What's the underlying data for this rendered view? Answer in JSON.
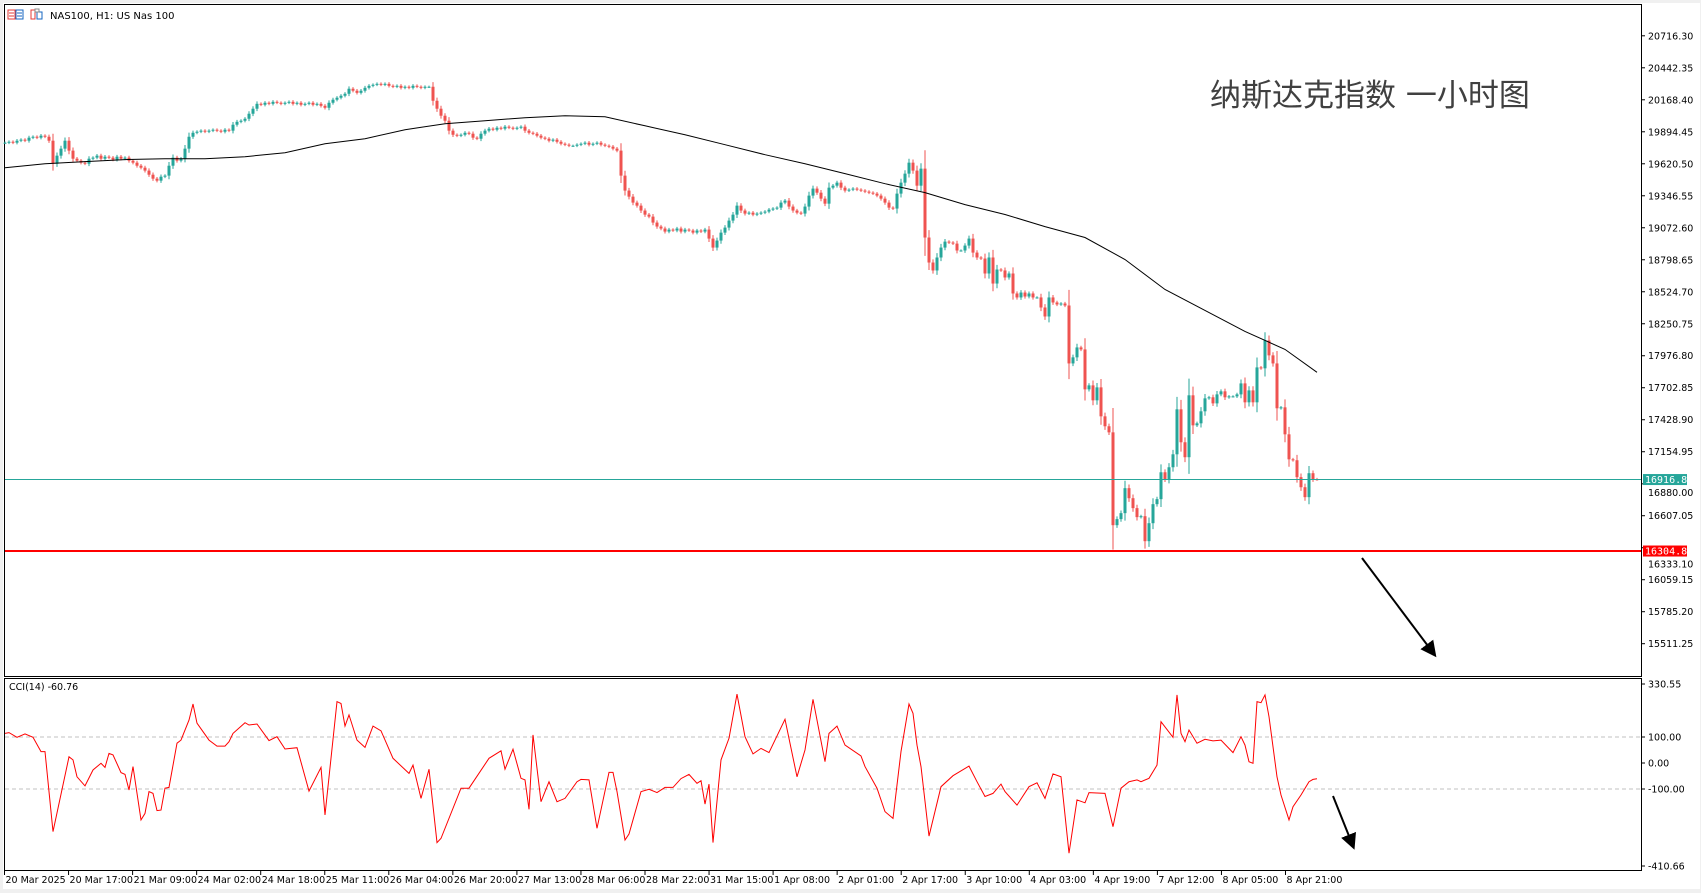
{
  "window": {
    "symbol_title": "NAS100, H1:  US Nas 100",
    "annotation": "纳斯达克指数 一小时图"
  },
  "colors": {
    "bull": "#26a69a",
    "bear": "#ef5350",
    "ma": "#000000",
    "cci": "#ff0000",
    "current_price": "#26a69a",
    "support": "#ff0000",
    "arrow": "#000000"
  },
  "icons": [
    "chart-list-icon",
    "symbol-window-icon"
  ],
  "chart_data": [
    {
      "type": "candlestick",
      "symbol": "NAS100",
      "timeframe": "H1",
      "price_ticks": [
        "20716.30",
        "20442.35",
        "20168.40",
        "19894.45",
        "19620.50",
        "19346.55",
        "19072.60",
        "18798.65",
        "18524.70",
        "18250.75",
        "17976.80",
        "17702.85",
        "17428.90",
        "17154.95",
        "16880.00",
        "16607.05",
        "16333.10",
        "16059.15",
        "15785.20",
        "15511.25"
      ],
      "ylim": [
        15420,
        20810
      ],
      "time_labels": [
        "20 Mar 2025",
        "20 Mar 17:00",
        "21 Mar 09:00",
        "24 Mar 02:00",
        "24 Mar 18:00",
        "25 Mar 11:00",
        "26 Mar 04:00",
        "26 Mar 20:00",
        "27 Mar 13:00",
        "28 Mar 06:00",
        "28 Mar 22:00",
        "31 Mar 15:00",
        "1 Apr 08:00",
        "2 Apr 01:00",
        "2 Apr 17:00",
        "3 Apr 10:00",
        "4 Apr 03:00",
        "4 Apr 19:00",
        "7 Apr 12:00",
        "8 Apr 05:00",
        "8 Apr 21:00"
      ],
      "closes": [
        19801,
        19809,
        19801,
        19818,
        19827,
        19818,
        19844,
        19852,
        19844,
        19861,
        19852,
        19818,
        19621,
        19690,
        19750,
        19818,
        19733,
        19664,
        19647,
        19630,
        19621,
        19664,
        19673,
        19690,
        19664,
        19681,
        19673,
        19656,
        19681,
        19664,
        19673,
        19647,
        19630,
        19604,
        19587,
        19562,
        19527,
        19493,
        19476,
        19510,
        19519,
        19604,
        19673,
        19647,
        19664,
        19750,
        19852,
        19886,
        19895,
        19904,
        19895,
        19904,
        19912,
        19904,
        19895,
        19912,
        19904,
        19955,
        19980,
        19989,
        20006,
        20049,
        20092,
        20134,
        20126,
        20143,
        20134,
        20151,
        20143,
        20134,
        20143,
        20151,
        20134,
        20143,
        20126,
        20134,
        20143,
        20126,
        20134,
        20117,
        20100,
        20143,
        20169,
        20186,
        20203,
        20220,
        20263,
        20246,
        20228,
        20246,
        20271,
        20288,
        20297,
        20305,
        20297,
        20305,
        20288,
        20280,
        20288,
        20271,
        20280,
        20271,
        20288,
        20280,
        20271,
        20280,
        20280,
        20160,
        20092,
        20032,
        19989,
        19904,
        19869,
        19861,
        19869,
        19886,
        19878,
        19844,
        19835,
        19878,
        19904,
        19921,
        19912,
        19929,
        19921,
        19938,
        19929,
        19921,
        19929,
        19938,
        19904,
        19886,
        19878,
        19861,
        19844,
        19835,
        19818,
        19827,
        19809,
        19792,
        19784,
        19775,
        19775,
        19784,
        19792,
        19801,
        19784,
        19792,
        19801,
        19784,
        19775,
        19767,
        19750,
        19733,
        19519,
        19391,
        19339,
        19288,
        19262,
        19220,
        19185,
        19168,
        19117,
        19083,
        19066,
        19040,
        19057,
        19049,
        19066,
        19040,
        19057,
        19049,
        19031,
        19049,
        19040,
        19057,
        18980,
        18903,
        18963,
        19031,
        19074,
        19134,
        19185,
        19262,
        19220,
        19194,
        19202,
        19185,
        19194,
        19202,
        19211,
        19228,
        19237,
        19245,
        19288,
        19305,
        19254,
        19220,
        19202,
        19194,
        19254,
        19348,
        19408,
        19373,
        19322,
        19279,
        19416,
        19433,
        19459,
        19416,
        19391,
        19399,
        19408,
        19399,
        19391,
        19382,
        19373,
        19365,
        19348,
        19322,
        19288,
        19245,
        19237,
        19365,
        19459,
        19536,
        19630,
        19562,
        19433,
        19579,
        18989,
        18775,
        18707,
        18818,
        18903,
        18954,
        18946,
        18937,
        18878,
        18878,
        18920,
        18980,
        18860,
        18818,
        18809,
        18681,
        18818,
        18595,
        18715,
        18707,
        18647,
        18681,
        18510,
        18476,
        18518,
        18484,
        18510,
        18476,
        18476,
        18390,
        18313,
        18476,
        18433,
        18416,
        18424,
        18407,
        17911,
        17963,
        18048,
        18031,
        17689,
        17723,
        17595,
        17706,
        17458,
        17373,
        17321,
        16526,
        16578,
        16629,
        16843,
        16757,
        16672,
        16595,
        16603,
        16389,
        16543,
        16706,
        16749,
        16979,
        16920,
        17022,
        17133,
        17518,
        17236,
        17108,
        17638,
        17381,
        17398,
        17501,
        17612,
        17621,
        17569,
        17646,
        17672,
        17621,
        17629,
        17629,
        17646,
        17740,
        17578,
        17680,
        17578,
        17877,
        17869,
        18108,
        17980,
        17911,
        17527,
        17535,
        17304,
        17090,
        17082,
        16937,
        16851,
        16766,
        16971,
        16920,
        16916.8
      ],
      "moving_average": [
        [
          0,
          19587
        ],
        [
          10,
          19621
        ],
        [
          20,
          19639
        ],
        [
          30,
          19656
        ],
        [
          40,
          19664
        ],
        [
          50,
          19664
        ],
        [
          60,
          19681
        ],
        [
          70,
          19715
        ],
        [
          80,
          19792
        ],
        [
          90,
          19835
        ],
        [
          100,
          19912
        ],
        [
          110,
          19964
        ],
        [
          120,
          19989
        ],
        [
          130,
          20015
        ],
        [
          140,
          20032
        ],
        [
          150,
          20023
        ],
        [
          160,
          19946
        ],
        [
          170,
          19869
        ],
        [
          180,
          19784
        ],
        [
          190,
          19698
        ],
        [
          200,
          19621
        ],
        [
          210,
          19536
        ],
        [
          220,
          19450
        ],
        [
          230,
          19374
        ],
        [
          240,
          19271
        ],
        [
          250,
          19186
        ],
        [
          260,
          19083
        ],
        [
          270,
          18989
        ],
        [
          280,
          18801
        ],
        [
          290,
          18544
        ],
        [
          300,
          18365
        ],
        [
          310,
          18185
        ],
        [
          320,
          18031
        ],
        [
          328,
          17835
        ]
      ],
      "current_price": "16916.80",
      "support_level": "16304.80"
    },
    {
      "type": "line",
      "indicator_label": "CCI(14) -60.76",
      "ticks": [
        "330.55",
        "100.00",
        "0.00",
        "-100.00",
        "-410.66"
      ],
      "ylim": [
        -410.66,
        330.55
      ],
      "levels": [
        100,
        -100
      ],
      "points": [
        [
          0,
          114
        ],
        [
          1,
          117
        ],
        [
          3,
          99
        ],
        [
          5,
          112
        ],
        [
          7,
          99
        ],
        [
          9,
          44
        ],
        [
          10,
          44
        ],
        [
          12,
          -264
        ],
        [
          16,
          24
        ],
        [
          17,
          12
        ],
        [
          18,
          -53
        ],
        [
          20,
          -88
        ],
        [
          22,
          -27
        ],
        [
          24,
          -1
        ],
        [
          25,
          -17
        ],
        [
          26,
          37
        ],
        [
          27,
          31
        ],
        [
          29,
          -37
        ],
        [
          30,
          -44
        ],
        [
          31,
          -104
        ],
        [
          32,
          -14
        ],
        [
          34,
          -219
        ],
        [
          35,
          -194
        ],
        [
          36,
          -110
        ],
        [
          37,
          -117
        ],
        [
          38,
          -183
        ],
        [
          39,
          -181
        ],
        [
          40,
          -97
        ],
        [
          41,
          -94
        ],
        [
          43,
          76
        ],
        [
          44,
          88
        ],
        [
          46,
          165
        ],
        [
          47,
          227
        ],
        [
          48,
          153
        ],
        [
          51,
          88
        ],
        [
          53,
          65
        ],
        [
          55,
          65
        ],
        [
          56,
          82
        ],
        [
          57,
          114
        ],
        [
          60,
          155
        ],
        [
          61,
          146
        ],
        [
          63,
          150
        ],
        [
          66,
          86
        ],
        [
          68,
          101
        ],
        [
          70,
          54
        ],
        [
          73,
          59
        ],
        [
          76,
          -108
        ],
        [
          79,
          -17
        ],
        [
          80,
          -200
        ],
        [
          83,
          236
        ],
        [
          84,
          229
        ],
        [
          85,
          142
        ],
        [
          86,
          185
        ],
        [
          88,
          88
        ],
        [
          90,
          60
        ],
        [
          92,
          142
        ],
        [
          94,
          124
        ],
        [
          97,
          18
        ],
        [
          101,
          -40
        ],
        [
          102,
          -8
        ],
        [
          104,
          -136
        ],
        [
          106,
          -24
        ],
        [
          108,
          -306
        ],
        [
          109,
          -290
        ],
        [
          114,
          -97
        ],
        [
          116,
          -97
        ],
        [
          121,
          18
        ],
        [
          124,
          47
        ],
        [
          125,
          -24
        ],
        [
          127,
          53
        ],
        [
          129,
          -59
        ],
        [
          130,
          -65
        ],
        [
          131,
          -178
        ],
        [
          132,
          108
        ],
        [
          134,
          -149
        ],
        [
          136,
          -72
        ],
        [
          138,
          -149
        ],
        [
          140,
          -136
        ],
        [
          143,
          -72
        ],
        [
          144,
          -63
        ],
        [
          146,
          -65
        ],
        [
          148,
          -251
        ],
        [
          151,
          -36
        ],
        [
          152,
          -36
        ],
        [
          153,
          -110
        ],
        [
          155,
          -296
        ],
        [
          156,
          -273
        ],
        [
          159,
          -110
        ],
        [
          161,
          -101
        ],
        [
          163,
          -114
        ],
        [
          165,
          -94
        ],
        [
          167,
          -94
        ],
        [
          169,
          -60
        ],
        [
          171,
          -44
        ],
        [
          173,
          -78
        ],
        [
          174,
          -68
        ],
        [
          175,
          -158
        ],
        [
          176,
          -81
        ],
        [
          177,
          -306
        ],
        [
          179,
          12
        ],
        [
          181,
          95
        ],
        [
          183,
          265
        ],
        [
          185,
          101
        ],
        [
          187,
          35
        ],
        [
          189,
          56
        ],
        [
          191,
          40
        ],
        [
          195,
          168
        ],
        [
          198,
          -53
        ],
        [
          200,
          50
        ],
        [
          202,
          245
        ],
        [
          205,
          5
        ],
        [
          206,
          114
        ],
        [
          208,
          142
        ],
        [
          210,
          69
        ],
        [
          214,
          27
        ],
        [
          215,
          -14
        ],
        [
          218,
          -97
        ],
        [
          220,
          -187
        ],
        [
          222,
          -213
        ],
        [
          224,
          44
        ],
        [
          226,
          227
        ],
        [
          227,
          191
        ],
        [
          228,
          69
        ],
        [
          229,
          -14
        ],
        [
          231,
          -281
        ],
        [
          234,
          -91
        ],
        [
          237,
          -49
        ],
        [
          241,
          -12
        ],
        [
          243,
          -72
        ],
        [
          245,
          -129
        ],
        [
          247,
          -117
        ],
        [
          249,
          -81
        ],
        [
          250,
          -110
        ],
        [
          253,
          -162
        ],
        [
          256,
          -91
        ],
        [
          258,
          -76
        ],
        [
          260,
          -136
        ],
        [
          262,
          -42
        ],
        [
          264,
          -53
        ],
        [
          266,
          -347
        ],
        [
          268,
          -142
        ],
        [
          270,
          -153
        ],
        [
          271,
          -114
        ],
        [
          275,
          -117
        ],
        [
          277,
          -245
        ],
        [
          279,
          -97
        ],
        [
          281,
          -72
        ],
        [
          283,
          -65
        ],
        [
          284,
          -72
        ],
        [
          286,
          -59
        ],
        [
          288,
          -8
        ],
        [
          289,
          159
        ],
        [
          292,
          99
        ],
        [
          293,
          262
        ],
        [
          294,
          114
        ],
        [
          295,
          82
        ],
        [
          296,
          127
        ],
        [
          298,
          76
        ],
        [
          300,
          91
        ],
        [
          302,
          85
        ],
        [
          304,
          88
        ],
        [
          307,
          40
        ],
        [
          309,
          101
        ],
        [
          310,
          69
        ],
        [
          311,
          5
        ],
        [
          312,
          -1
        ],
        [
          313,
          236
        ],
        [
          314,
          232
        ],
        [
          315,
          262
        ],
        [
          316,
          178
        ],
        [
          318,
          -53
        ],
        [
          319,
          -123
        ],
        [
          321,
          -219
        ],
        [
          322,
          -168
        ],
        [
          324,
          -123
        ],
        [
          326,
          -72
        ],
        [
          327,
          -63
        ],
        [
          328,
          -60.76
        ]
      ]
    }
  ]
}
